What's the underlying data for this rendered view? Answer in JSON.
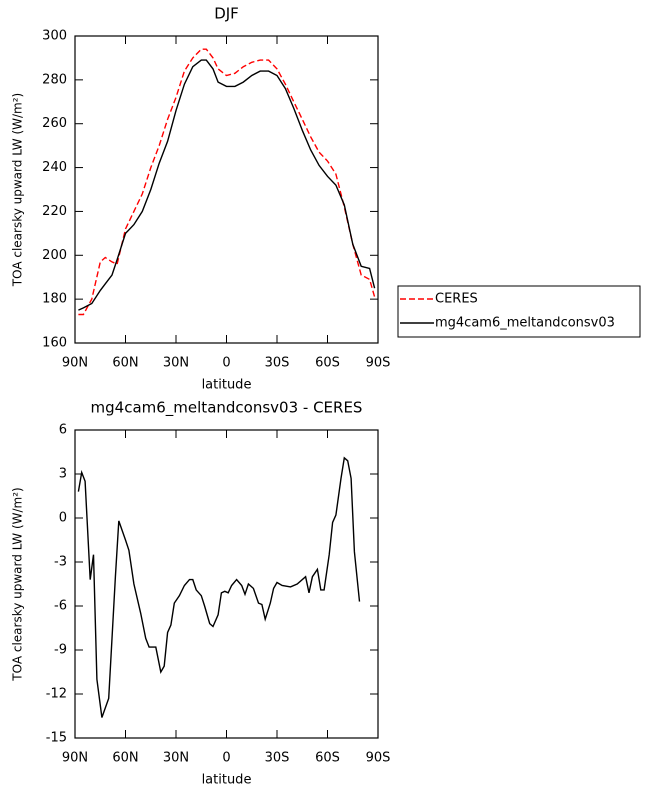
{
  "chart_data": [
    {
      "type": "line",
      "title": "DJF",
      "x_label": "latitude",
      "y_label": "TOA clearsky upward LW (W/m²)",
      "x": [
        88,
        85,
        80,
        75,
        72,
        68,
        65,
        60,
        55,
        50,
        45,
        40,
        35,
        30,
        25,
        20,
        15,
        12,
        8,
        5,
        0,
        -5,
        -10,
        -15,
        -20,
        -25,
        -30,
        -35,
        -40,
        -45,
        -50,
        -55,
        -60,
        -65,
        -70,
        -75,
        -80,
        -85,
        -88
      ],
      "series": [
        {
          "name": "CERES",
          "color": "#ff0000",
          "dash": true,
          "values": [
            173,
            173,
            180,
            197,
            199,
            197,
            196,
            212,
            220,
            228,
            240,
            250,
            262,
            272,
            284,
            290,
            294,
            294,
            290,
            285,
            282,
            283,
            286,
            288,
            289,
            289,
            285,
            278,
            270,
            262,
            254,
            247,
            243,
            237,
            222,
            205,
            191,
            189,
            181
          ]
        },
        {
          "name": "mg4cam6_meltandconsv03",
          "color": "#000000",
          "dash": false,
          "values": [
            175,
            176,
            178,
            184,
            187,
            191,
            198,
            210,
            214,
            220,
            230,
            242,
            252,
            266,
            278,
            286,
            289,
            289,
            285,
            279,
            277,
            277,
            279,
            282,
            284,
            284,
            282,
            276,
            267,
            257,
            248,
            241,
            236,
            232,
            223,
            205,
            195,
            194,
            185
          ]
        }
      ],
      "xlim": [
        90,
        -90
      ],
      "xticks": [
        {
          "value": 90,
          "label": "90N"
        },
        {
          "value": 60,
          "label": "60N"
        },
        {
          "value": 30,
          "label": "30N"
        },
        0,
        {
          "value": -30,
          "label": "30S"
        },
        {
          "value": -60,
          "label": "60S"
        },
        {
          "value": -90,
          "label": "90S"
        }
      ],
      "ylim": [
        160,
        300
      ],
      "yticks": [
        160,
        180,
        200,
        220,
        240,
        260,
        280,
        300
      ],
      "legend": "outside-right"
    },
    {
      "type": "line",
      "title": "mg4cam6_meltandconsv03 - CERES",
      "x_label": "latitude",
      "y_label": "TOA clearsky upward LW (W/m²)",
      "x": [
        88,
        86,
        84,
        81,
        79,
        77,
        74,
        70,
        66,
        64,
        60,
        58,
        55,
        51,
        48,
        46,
        42,
        39,
        37,
        35,
        33,
        31,
        28,
        25,
        22,
        20,
        18,
        15,
        13,
        10,
        8,
        5,
        3,
        1,
        -1,
        -3,
        -6,
        -9,
        -11,
        -13,
        -16,
        -19,
        -21,
        -23,
        -26,
        -28,
        -30,
        -33,
        -38,
        -42,
        -47,
        -49,
        -51,
        -54,
        -56,
        -58,
        -61,
        -63,
        -65,
        -68,
        -70,
        -72,
        -74,
        -76,
        -79
      ],
      "values": [
        1.8,
        3.1,
        2.5,
        -4.2,
        -2.5,
        -11,
        -13.6,
        -12.3,
        -4,
        -0.2,
        -1.5,
        -2.2,
        -4.5,
        -6.5,
        -8.2,
        -8.8,
        -8.8,
        -10.5,
        -10.1,
        -7.8,
        -7.3,
        -5.8,
        -5.3,
        -4.6,
        -4.2,
        -4.2,
        -4.9,
        -5.3,
        -6.0,
        -7.2,
        -7.4,
        -6.6,
        -5.1,
        -5.0,
        -5.1,
        -4.6,
        -4.2,
        -4.6,
        -5.2,
        -4.5,
        -4.8,
        -5.8,
        -5.9,
        -6.9,
        -5.8,
        -4.8,
        -4.4,
        -4.6,
        -4.7,
        -4.5,
        -4.0,
        -5.1,
        -4.0,
        -3.5,
        -4.9,
        -4.9,
        -2.5,
        -0.3,
        0.2,
        2.7,
        4.1,
        3.9,
        2.7,
        -2.3,
        -5.7
      ],
      "color": "#000000",
      "xlim": [
        90,
        -90
      ],
      "xticks": [
        {
          "value": 90,
          "label": "90N"
        },
        {
          "value": 60,
          "label": "60N"
        },
        {
          "value": 30,
          "label": "30N"
        },
        0,
        {
          "value": -30,
          "label": "30S"
        },
        {
          "value": -60,
          "label": "60S"
        },
        {
          "value": -90,
          "label": "90S"
        }
      ],
      "ylim": [
        -15,
        6
      ],
      "yticks": [
        -15,
        -12,
        -9,
        -6,
        -3,
        0,
        3,
        6
      ]
    }
  ]
}
